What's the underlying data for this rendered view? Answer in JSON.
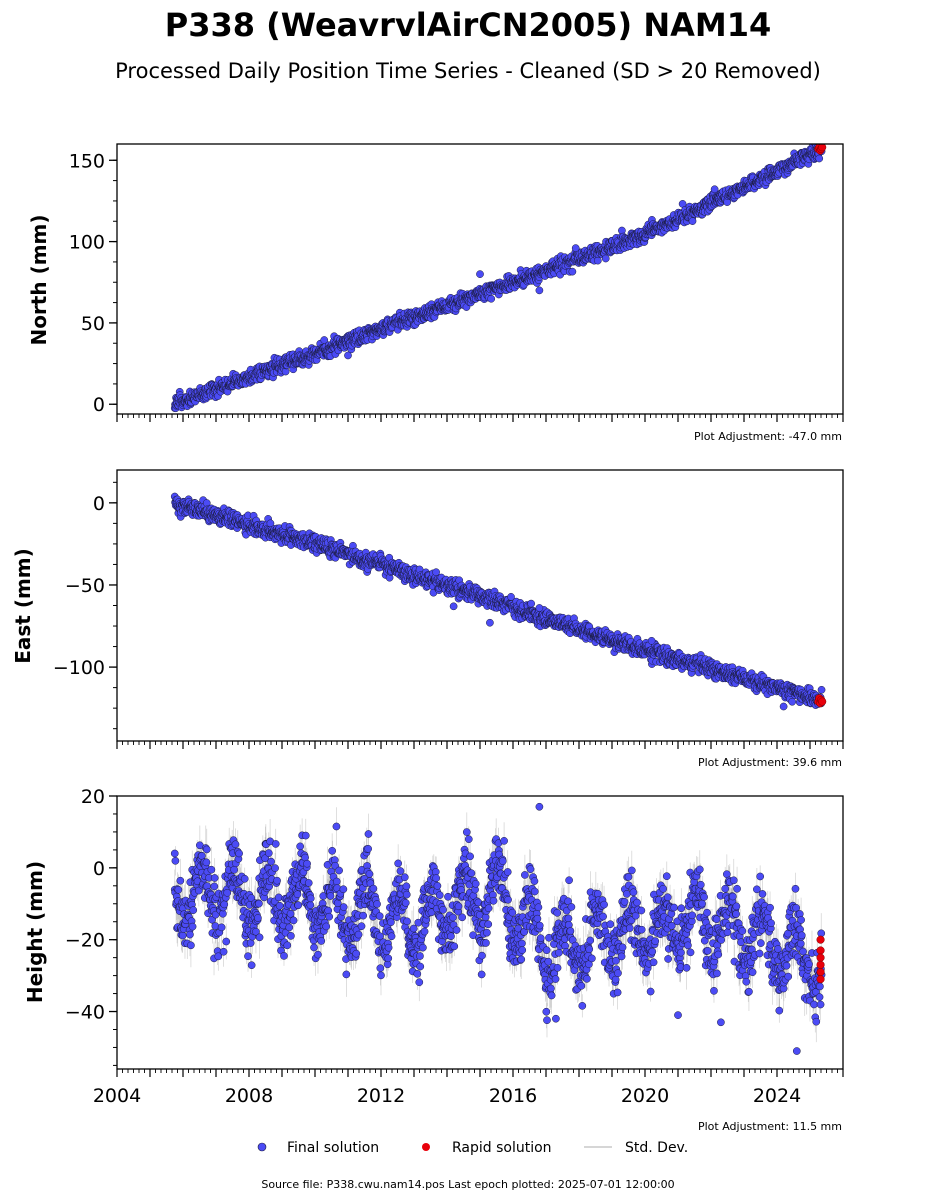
{
  "figure": {
    "title": "P338 (WeavrvlAirCN2005) NAM14",
    "subtitle": "Processed Daily Position Time Series - Cleaned (SD > 20 Removed)",
    "footer": "Source file: P338.cwu.nam14.pos  Last epoch plotted: 2025-07-01 12:00:00"
  },
  "colors": {
    "final": "#4B4BF5",
    "final_edge": "#1a1a3a",
    "rapid": "#e8000b",
    "std": "#9a9a9a",
    "axis": "#000000"
  },
  "legend": {
    "final_label": "Final solution",
    "rapid_label": "Rapid solution",
    "std_label": "Std. Dev."
  },
  "chart_data": [
    {
      "type": "scatter",
      "ylabel": "North (mm)",
      "adjustment": "Plot Adjustment: -47.0 mm",
      "xlim": [
        2004.0,
        2026.0
      ],
      "ylim": [
        -6,
        160
      ],
      "yticks": [
        0,
        50,
        100,
        150
      ],
      "ytick_labels": [
        "0",
        "50",
        "100",
        "150"
      ],
      "x_tick_labels": [],
      "final_trend": [
        [
          2005.75,
          0
        ],
        [
          2010.0,
          31
        ],
        [
          2015.0,
          68
        ],
        [
          2020.0,
          104
        ],
        [
          2025.35,
          157
        ]
      ],
      "final_scatter": 2.2,
      "final_outliers": [
        [
          2011.0,
          30
        ],
        [
          2015.0,
          80
        ],
        [
          2017.9,
          96
        ],
        [
          2016.8,
          70
        ]
      ],
      "std_dev_mm": 1.6,
      "rapid": [
        [
          2025.25,
          157
        ],
        [
          2025.28,
          158
        ],
        [
          2025.31,
          156
        ],
        [
          2025.34,
          157
        ],
        [
          2025.37,
          158
        ]
      ]
    },
    {
      "type": "scatter",
      "ylabel": "East (mm)",
      "adjustment": "Plot Adjustment: 39.6 mm",
      "xlim": [
        2004.0,
        2026.0
      ],
      "ylim": [
        -145,
        20
      ],
      "yticks": [
        0,
        -50,
        -100
      ],
      "ytick_labels": [
        "0",
        "−50",
        "−100"
      ],
      "x_tick_labels": [],
      "final_trend": [
        [
          2005.75,
          0
        ],
        [
          2010.0,
          -25
        ],
        [
          2015.0,
          -57
        ],
        [
          2020.0,
          -90
        ],
        [
          2025.35,
          -120
        ]
      ],
      "final_scatter": 2.4,
      "final_outliers": [
        [
          2014.2,
          -63
        ],
        [
          2015.3,
          -73
        ],
        [
          2016.8,
          -64
        ],
        [
          2020.2,
          -84
        ],
        [
          2024.2,
          -124
        ]
      ],
      "std_dev_mm": 1.8,
      "rapid": [
        [
          2025.25,
          -121
        ],
        [
          2025.28,
          -119
        ],
        [
          2025.31,
          -122
        ],
        [
          2025.34,
          -120
        ],
        [
          2025.37,
          -121
        ]
      ]
    },
    {
      "type": "scatter",
      "ylabel": "Height (mm)",
      "adjustment": "Plot Adjustment: 11.5 mm",
      "xlim": [
        2004.0,
        2026.0
      ],
      "ylim": [
        -56,
        20
      ],
      "yticks": [
        20,
        0,
        -20,
        -40
      ],
      "ytick_labels": [
        "20",
        "0",
        "−20",
        "−40"
      ],
      "x_ticks": [
        2004,
        2008,
        2012,
        2016,
        2020,
        2024
      ],
      "x_tick_labels": [
        "2004",
        "2008",
        "2012",
        "2016",
        "2020",
        "2024"
      ],
      "final_trend": [
        [
          2005.75,
          -6
        ],
        [
          2010.0,
          -10
        ],
        [
          2013.0,
          -15
        ],
        [
          2015.5,
          -6
        ],
        [
          2017.0,
          -22
        ],
        [
          2020.0,
          -18
        ],
        [
          2022.0,
          -15
        ],
        [
          2025.35,
          -28
        ]
      ],
      "seasonal_amplitude_mm": 8,
      "final_scatter": 4.5,
      "final_outliers": [
        [
          2005.75,
          4
        ],
        [
          2016.8,
          17
        ],
        [
          2017.3,
          -42
        ],
        [
          2024.6,
          -51
        ],
        [
          2022.3,
          -43
        ],
        [
          2021.0,
          -41
        ]
      ],
      "std_dev_mm": 4.5,
      "rapid": [
        [
          2025.32,
          -20
        ],
        [
          2025.32,
          -23
        ],
        [
          2025.32,
          -25
        ],
        [
          2025.32,
          -27
        ],
        [
          2025.32,
          -29
        ],
        [
          2025.32,
          -31
        ]
      ]
    }
  ]
}
